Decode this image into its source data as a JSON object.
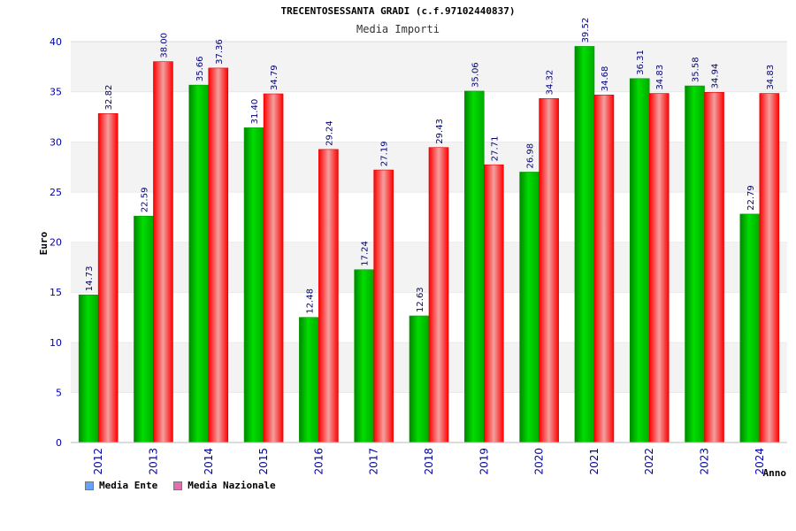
{
  "chart_data": {
    "type": "bar",
    "title": "TRECENTOSESSANTA GRADI (c.f.97102440837)",
    "subtitle": "Media Importi",
    "xlabel": "Anno",
    "ylabel": "Euro",
    "ylim": [
      0,
      40
    ],
    "yticks": [
      "0",
      "5",
      "10",
      "15",
      "20",
      "25",
      "30",
      "35",
      "40"
    ],
    "categories": [
      "2012",
      "2013",
      "2014",
      "2015",
      "2016",
      "2017",
      "2018",
      "2019",
      "2020",
      "2021",
      "2022",
      "2023",
      "2024"
    ],
    "series": [
      {
        "name": "Media Ente",
        "values": [
          14.73,
          22.59,
          35.66,
          31.4,
          12.48,
          17.24,
          12.63,
          35.06,
          26.98,
          39.52,
          36.31,
          35.58,
          22.79
        ],
        "labels": [
          "14.73",
          "22.59",
          "35.66",
          "31.40",
          "12.48",
          "17.24",
          "12.63",
          "35.06",
          "26.98",
          "39.52",
          "36.31",
          "35.58",
          "22.79"
        ],
        "color": "#00bb00",
        "swatch_color": "#66a3ff"
      },
      {
        "name": "Media Nazionale",
        "values": [
          32.82,
          38.0,
          37.36,
          34.79,
          29.24,
          27.19,
          29.43,
          27.71,
          34.32,
          34.68,
          34.83,
          34.94,
          34.83
        ],
        "labels": [
          "32.82",
          "38.00",
          "37.36",
          "34.79",
          "29.24",
          "27.19",
          "29.43",
          "27.71",
          "34.32",
          "34.68",
          "34.83",
          "34.94",
          "34.83"
        ],
        "color": "#ee1111",
        "swatch_color": "#e06fb0"
      }
    ],
    "grid": true,
    "legend_position": "bottom-left"
  }
}
